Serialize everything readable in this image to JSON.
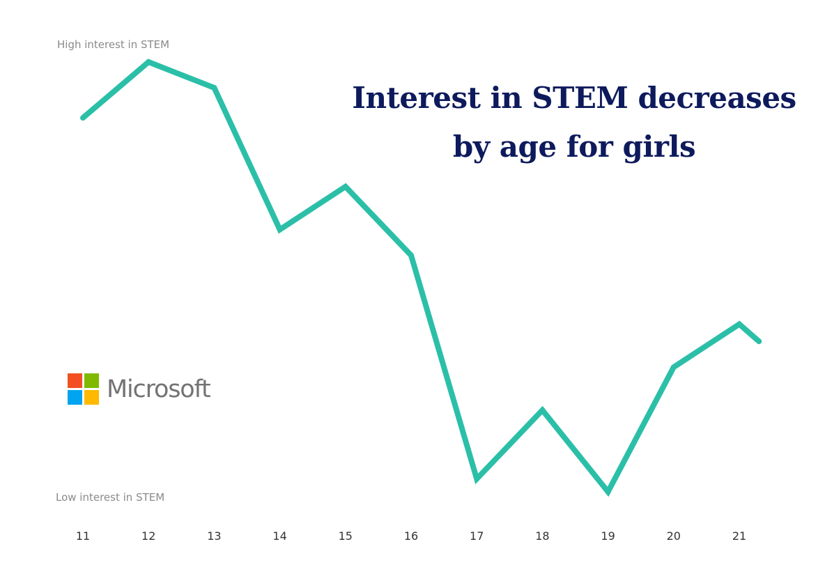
{
  "chart_data": {
    "type": "line",
    "title": "Interest in STEM decreases by age for girls",
    "title_lines": [
      "Interest in STEM decreases",
      "by age for girls"
    ],
    "y_high_label": "High interest in STEM",
    "y_low_label": "Low interest in STEM",
    "x": [
      11,
      12,
      13,
      14,
      15,
      16,
      17,
      18,
      19,
      20,
      21,
      21.3
    ],
    "x_tick_labels": [
      "11",
      "12",
      "13",
      "14",
      "15",
      "16",
      "17",
      "18",
      "19",
      "20",
      "21"
    ],
    "values": [
      0.87,
      1.0,
      0.94,
      0.61,
      0.71,
      0.55,
      0.03,
      0.19,
      0.0,
      0.29,
      0.39,
      0.35
    ],
    "ylim": [
      0,
      1
    ],
    "grid": false,
    "line_color": "#2bbfa8",
    "title_color": "#0d1a5c"
  },
  "logo": {
    "text": "Microsoft",
    "colors": [
      "#f25022",
      "#7fba00",
      "#00a4ef",
      "#ffb900"
    ]
  }
}
